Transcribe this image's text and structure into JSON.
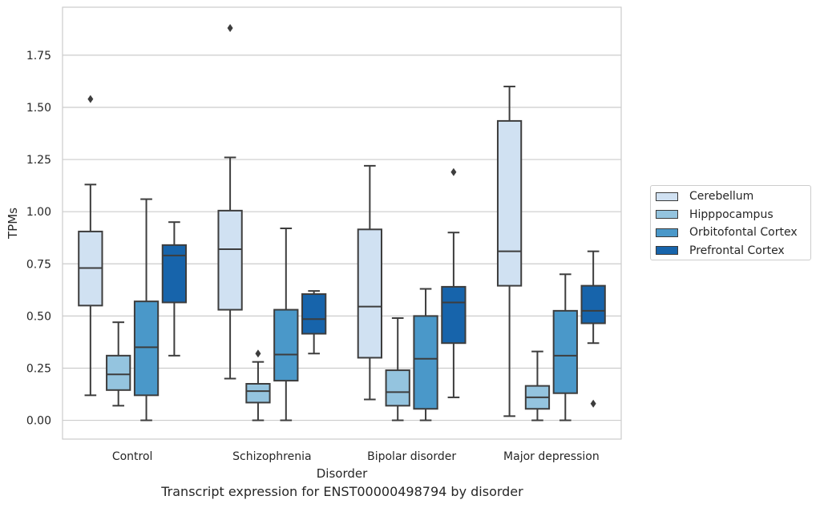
{
  "caption": "Transcript expression for ENST00000498794 by disorder",
  "chart_data": {
    "type": "boxplot",
    "title": "",
    "xlabel": "Disorder",
    "ylabel": "TPMs",
    "ylim": [
      -0.09,
      1.98
    ],
    "yticks": [
      "0.00",
      "0.25",
      "0.50",
      "0.75",
      "1.00",
      "1.25",
      "1.50",
      "1.75"
    ],
    "grid": "horizontal",
    "legend_position": "right",
    "categories": [
      "Control",
      "Schizophrenia",
      "Bipolar disorder",
      "Major depression"
    ],
    "series": [
      {
        "name": "Cerebellum",
        "color": "#d0e1f2",
        "boxes": [
          {
            "whisker_low": 0.12,
            "q1": 0.55,
            "median": 0.73,
            "q3": 0.905,
            "whisker_high": 1.13,
            "outliers": [
              1.54
            ]
          },
          {
            "whisker_low": 0.2,
            "q1": 0.53,
            "median": 0.82,
            "q3": 1.005,
            "whisker_high": 1.26,
            "outliers": [
              1.88
            ]
          },
          {
            "whisker_low": 0.1,
            "q1": 0.3,
            "median": 0.545,
            "q3": 0.915,
            "whisker_high": 1.22,
            "outliers": []
          },
          {
            "whisker_low": 0.02,
            "q1": 0.645,
            "median": 0.81,
            "q3": 1.435,
            "whisker_high": 1.6,
            "outliers": []
          }
        ]
      },
      {
        "name": "Hipppocampus",
        "color": "#94c4df",
        "boxes": [
          {
            "whisker_low": 0.07,
            "q1": 0.145,
            "median": 0.22,
            "q3": 0.31,
            "whisker_high": 0.47,
            "outliers": []
          },
          {
            "whisker_low": 0.0,
            "q1": 0.085,
            "median": 0.14,
            "q3": 0.175,
            "whisker_high": 0.28,
            "outliers": [
              0.32
            ]
          },
          {
            "whisker_low": 0.0,
            "q1": 0.07,
            "median": 0.135,
            "q3": 0.24,
            "whisker_high": 0.49,
            "outliers": []
          },
          {
            "whisker_low": 0.0,
            "q1": 0.055,
            "median": 0.11,
            "q3": 0.165,
            "whisker_high": 0.33,
            "outliers": []
          }
        ]
      },
      {
        "name": "Orbitofontal Cortex",
        "color": "#4a98c9",
        "boxes": [
          {
            "whisker_low": 0.0,
            "q1": 0.12,
            "median": 0.35,
            "q3": 0.57,
            "whisker_high": 1.06,
            "outliers": []
          },
          {
            "whisker_low": 0.0,
            "q1": 0.19,
            "median": 0.315,
            "q3": 0.53,
            "whisker_high": 0.92,
            "outliers": []
          },
          {
            "whisker_low": 0.0,
            "q1": 0.055,
            "median": 0.295,
            "q3": 0.5,
            "whisker_high": 0.63,
            "outliers": []
          },
          {
            "whisker_low": 0.0,
            "q1": 0.13,
            "median": 0.31,
            "q3": 0.525,
            "whisker_high": 0.7,
            "outliers": []
          }
        ]
      },
      {
        "name": "Prefrontal Cortex",
        "color": "#1764ab",
        "boxes": [
          {
            "whisker_low": 0.31,
            "q1": 0.565,
            "median": 0.79,
            "q3": 0.84,
            "whisker_high": 0.95,
            "outliers": []
          },
          {
            "whisker_low": 0.32,
            "q1": 0.415,
            "median": 0.485,
            "q3": 0.605,
            "whisker_high": 0.62,
            "outliers": []
          },
          {
            "whisker_low": 0.11,
            "q1": 0.37,
            "median": 0.565,
            "q3": 0.64,
            "whisker_high": 0.9,
            "outliers": [
              1.19
            ]
          },
          {
            "whisker_low": 0.37,
            "q1": 0.465,
            "median": 0.525,
            "q3": 0.645,
            "whisker_high": 0.81,
            "outliers": [
              0.08
            ]
          }
        ]
      }
    ]
  }
}
